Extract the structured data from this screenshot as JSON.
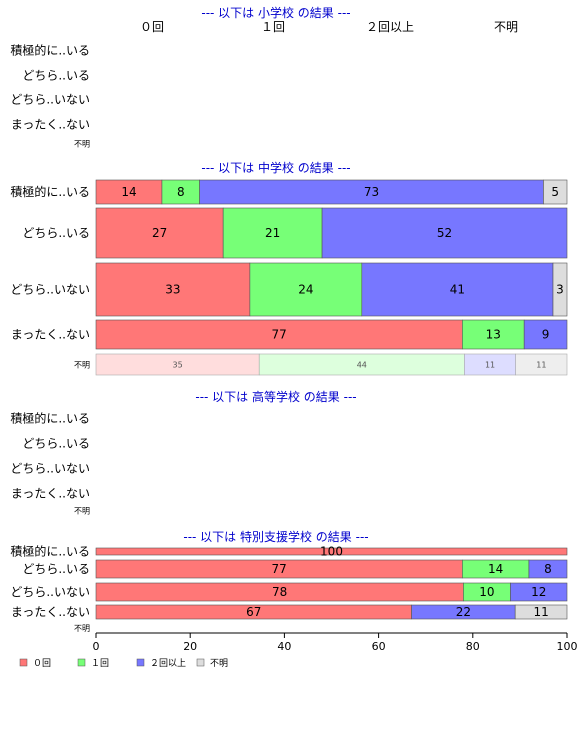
{
  "colors": {
    "red": "#ff7777",
    "green": "#77ff77",
    "blue": "#7777ff",
    "gray": "#dddddd",
    "red_light": "#ffdddd",
    "green_light": "#ddffdd",
    "blue_light": "#ddddff",
    "gray_light": "#eeeeee",
    "title": "#0000cc"
  },
  "chart_data": {
    "type": "bar",
    "orientation": "horizontal-stacked-100",
    "xlim": [
      0,
      100
    ],
    "xticks": [
      0,
      20,
      40,
      60,
      80,
      100
    ],
    "categories": [
      "0回",
      "1回",
      "2回以上",
      "不明"
    ],
    "header_labels": [
      "０回",
      "１回",
      "２回以上",
      "不明"
    ],
    "legend": [
      {
        "label": "０回",
        "color": "red"
      },
      {
        "label": "１回",
        "color": "green"
      },
      {
        "label": "２回以上",
        "color": "blue"
      },
      {
        "label": "不明",
        "color": "gray"
      }
    ],
    "sections": [
      {
        "title": "--- 以下は 小学校 の結果 ---",
        "rows": [
          {
            "label": "積極的に..いる",
            "values": []
          },
          {
            "label": "どちら..いる",
            "values": []
          },
          {
            "label": "どちら..いない",
            "values": []
          },
          {
            "label": "まったく..ない",
            "values": []
          },
          {
            "label": "不明",
            "values": [],
            "small": true
          }
        ]
      },
      {
        "title": "--- 以下は 中学校 の結果 ---",
        "rows": [
          {
            "label": "積極的に..いる",
            "values": [
              14,
              8,
              73,
              5
            ]
          },
          {
            "label": "どちら..いる",
            "values": [
              27,
              21,
              52,
              0
            ]
          },
          {
            "label": "どちら..いない",
            "values": [
              33,
              24,
              41,
              3
            ]
          },
          {
            "label": "まったく..ない",
            "values": [
              77,
              13,
              9,
              0
            ]
          },
          {
            "label": "不明",
            "values": [
              35,
              44,
              11,
              11
            ],
            "small": true
          }
        ]
      },
      {
        "title": "--- 以下は 高等学校 の結果 ---",
        "rows": [
          {
            "label": "積極的に..いる",
            "values": []
          },
          {
            "label": "どちら..いる",
            "values": []
          },
          {
            "label": "どちら..いない",
            "values": []
          },
          {
            "label": "まったく..ない",
            "values": []
          },
          {
            "label": "不明",
            "values": [],
            "small": true
          }
        ]
      },
      {
        "title": "--- 以下は 特別支援学校 の結果 ---",
        "rows": [
          {
            "label": "積極的に..いる",
            "values": [
              100,
              0,
              0,
              0
            ]
          },
          {
            "label": "どちら..いる",
            "values": [
              77,
              14,
              8,
              0
            ]
          },
          {
            "label": "どちら..いない",
            "values": [
              78,
              10,
              12,
              0
            ]
          },
          {
            "label": "まったく..ない",
            "values": [
              67,
              0,
              22,
              11
            ]
          },
          {
            "label": "不明",
            "values": [],
            "small": true
          }
        ]
      }
    ]
  }
}
